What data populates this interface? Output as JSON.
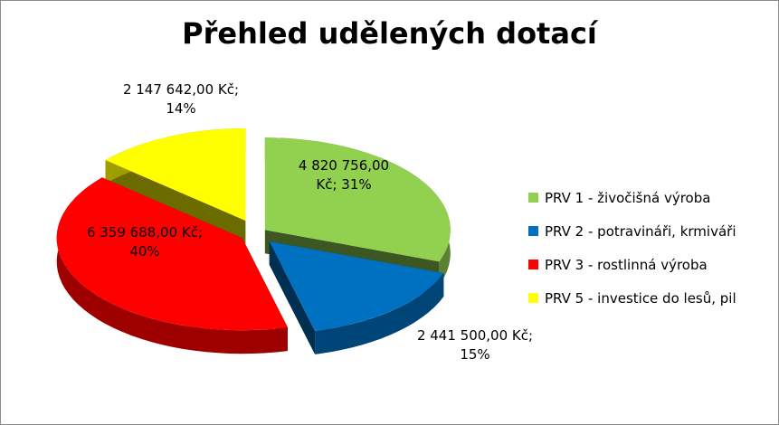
{
  "chart_data": {
    "type": "pie",
    "style": "3d-exploded",
    "title": "Přehled udělených dotací",
    "legend_position": "right",
    "currency": "Kč",
    "slices": [
      {
        "name": "PRV 1 - živočišná výroba",
        "value": 4820756.0,
        "percent": 31,
        "color": "#92d050",
        "label_line1": "4 820 756,00",
        "label_line2": "Kč; 31%"
      },
      {
        "name": "PRV 2 - potravináři, krmiváři",
        "value": 2441500.0,
        "percent": 15,
        "color": "#0070c0",
        "label_line1": "2 441 500,00 Kč;",
        "label_line2": "15%"
      },
      {
        "name": "PRV 3 - rostlinná výroba",
        "value": 6359688.0,
        "percent": 40,
        "color": "#ff0000",
        "label_line1": "6 359 688,00 Kč;",
        "label_line2": "40%"
      },
      {
        "name": "PRV 5 - investice do lesů, pil",
        "value": 2147642.0,
        "percent": 14,
        "color": "#ffff00",
        "label_line1": "2 147 642,00 Kč;",
        "label_line2": "14%"
      }
    ]
  }
}
